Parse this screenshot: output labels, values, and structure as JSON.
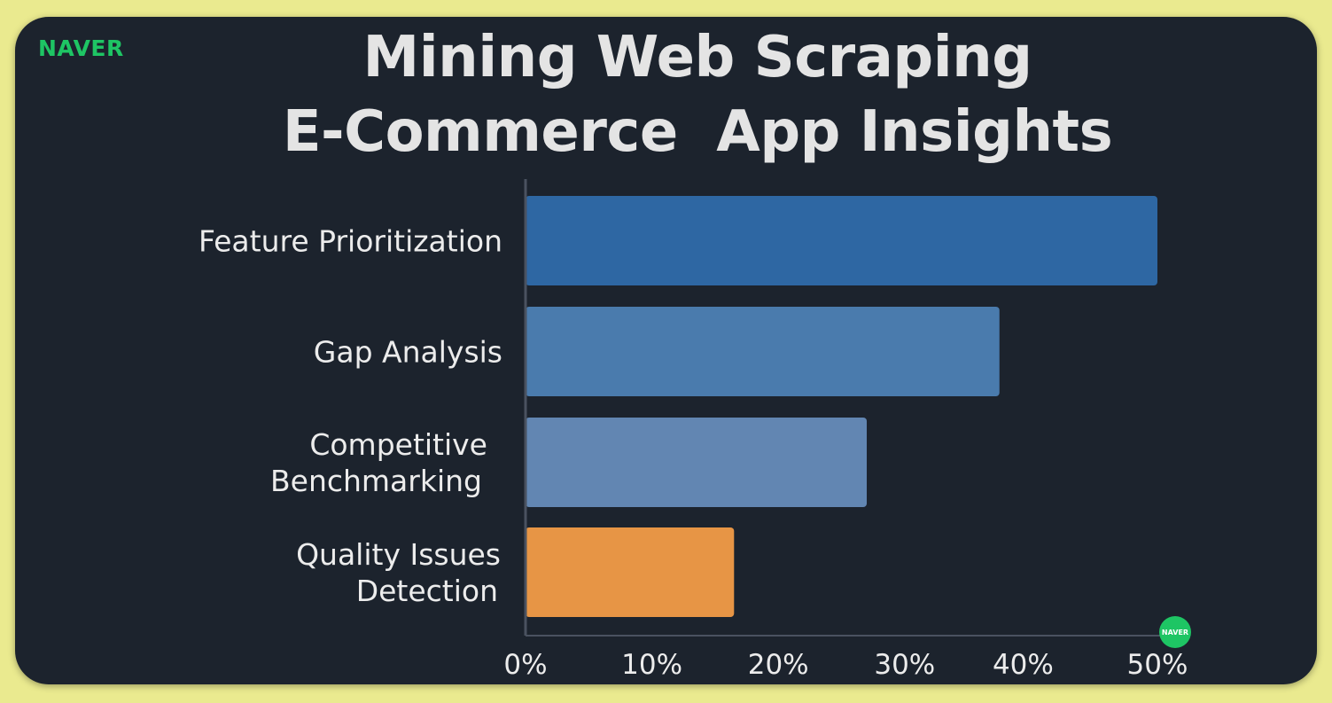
{
  "brand": {
    "logo_text": "NAVER",
    "badge_text": "NAVER",
    "badge_color": "#1ec564"
  },
  "title": {
    "line1": "Mining Web Scraping",
    "line2": "E-Commerce  App Insights"
  },
  "colors": {
    "page_bg": "#eaea8f",
    "card_bg": "#1c232d",
    "text": "#ececec",
    "axis": "#4a5260"
  },
  "chart_data": {
    "type": "bar",
    "orientation": "horizontal",
    "title": "Mining Web Scraping E-Commerce  App Insights",
    "categories": [
      "Feature Prioritization",
      "Gap Analysis",
      "Competitive Benchmarking",
      "Quality Issues Detection"
    ],
    "category_lines": [
      [
        "Feature Prioritization"
      ],
      [
        "Gap Analysis"
      ],
      [
        "Competitive",
        "Benchmarking"
      ],
      [
        "Quality Issues",
        "Detection"
      ]
    ],
    "values": [
      50,
      37.5,
      27,
      16.5
    ],
    "bar_colors": [
      "#2e67a3",
      "#4a7bad",
      "#6286b2",
      "#e79545"
    ],
    "xlim": [
      0,
      50
    ],
    "ticks": [
      0,
      10,
      20,
      30,
      40,
      50
    ],
    "tick_labels": [
      "0%",
      "10%",
      "20%",
      "30%",
      "40%",
      "50%"
    ],
    "xlabel": "",
    "ylabel": "",
    "grid": false,
    "legend": "none"
  }
}
